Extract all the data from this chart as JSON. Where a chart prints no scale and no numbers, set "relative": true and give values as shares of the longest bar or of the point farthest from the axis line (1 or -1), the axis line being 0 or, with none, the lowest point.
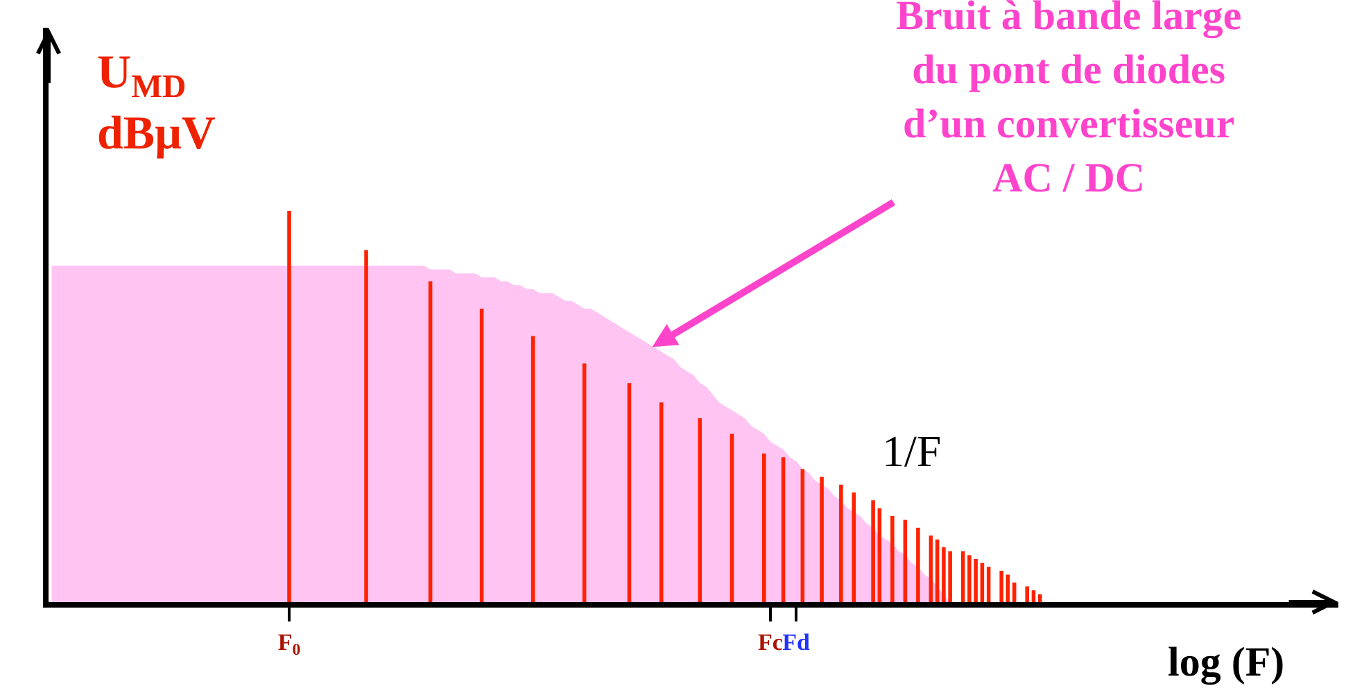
{
  "chart_data": {
    "type": "bar",
    "relative": true,
    "ylabel": "U$_{MD}$\ndBμV",
    "xlabel": "log (F)",
    "categories": [
      null,
      null,
      null,
      null,
      null,
      null,
      null,
      null,
      null,
      null,
      null,
      null,
      null,
      null,
      null,
      null,
      null,
      null,
      null,
      null,
      null,
      null,
      null,
      null,
      null,
      null,
      null,
      null,
      null,
      null,
      null,
      null,
      null,
      null,
      null,
      null,
      null,
      "F$_{0}$",
      null,
      null,
      null,
      null,
      null,
      null,
      null,
      null,
      null,
      null,
      null,
      null,
      null,
      null,
      null,
      null,
      null,
      null,
      null,
      null,
      null,
      null,
      null,
      null,
      null,
      null,
      null,
      null,
      null,
      null,
      null,
      null,
      null,
      null,
      null,
      null,
      null,
      null,
      null,
      null,
      null,
      null,
      null,
      null,
      null,
      null,
      null,
      null,
      null,
      null,
      null,
      null,
      null,
      null,
      null,
      null,
      null,
      null,
      null,
      null,
      null,
      null,
      null,
      null,
      null,
      null,
      null,
      null,
      null,
      null,
      null,
      null,
      null,
      null,
      "Fc",
      null,
      null,
      null,
      "Fd",
      null,
      null,
      null,
      null,
      null,
      null,
      null,
      null,
      null,
      null,
      null,
      null,
      null,
      null,
      null,
      null,
      null,
      null,
      null,
      null,
      null,
      null,
      null,
      null,
      null,
      null,
      null,
      null,
      null,
      null,
      null,
      null,
      null,
      null,
      null,
      null,
      null,
      null,
      null,
      null,
      null,
      null,
      null,
      null,
      null,
      null,
      null,
      null,
      null,
      null,
      null,
      null,
      null,
      null,
      null,
      null,
      null,
      null,
      null,
      null,
      null,
      null,
      null,
      null,
      null,
      null,
      null,
      null,
      null,
      null,
      null,
      null,
      null,
      null,
      null,
      null,
      null,
      null,
      null,
      null,
      null,
      null,
      null,
      null
    ],
    "series": [
      {
        "type": "area",
        "color": "#ffc4f2",
        "values": [
          0.86,
          0.86,
          0.86,
          0.86,
          0.86,
          0.86,
          0.86,
          0.86,
          0.86,
          0.86,
          0.86,
          0.86,
          0.86,
          0.86,
          0.86,
          0.86,
          0.86,
          0.86,
          0.86,
          0.86,
          0.86,
          0.86,
          0.86,
          0.86,
          0.86,
          0.86,
          0.86,
          0.86,
          0.86,
          0.86,
          0.86,
          0.86,
          0.86,
          0.86,
          0.86,
          0.86,
          0.86,
          0.86,
          0.86,
          0.86,
          0.86,
          0.86,
          0.86,
          0.86,
          0.86,
          0.86,
          0.86,
          0.86,
          0.86,
          0.86,
          0.86,
          0.86,
          0.86,
          0.86,
          0.86,
          0.86,
          0.86,
          0.86,
          0.86,
          0.85,
          0.85,
          0.85,
          0.85,
          0.84,
          0.84,
          0.84,
          0.84,
          0.83,
          0.83,
          0.83,
          0.82,
          0.82,
          0.81,
          0.81,
          0.8,
          0.8,
          0.79,
          0.79,
          0.79,
          0.78,
          0.77,
          0.77,
          0.76,
          0.75,
          0.75,
          0.74,
          0.73,
          0.72,
          0.71,
          0.7,
          0.69,
          0.68,
          0.67,
          0.66,
          0.65,
          0.64,
          0.63,
          0.62,
          0.6,
          0.59,
          0.58,
          0.56,
          0.55,
          0.53,
          0.51,
          0.5,
          0.49,
          0.48,
          0.47,
          0.45,
          0.44,
          0.43,
          0.41,
          0.4,
          0.39,
          0.37,
          0.36,
          0.34,
          0.33,
          0.31,
          0.3,
          0.29,
          0.27,
          0.26,
          0.24,
          0.23,
          0.22,
          0.2,
          0.19,
          0.17,
          0.16,
          0.15,
          0.13,
          0.12,
          0.1,
          0.09,
          0.07,
          0.06,
          0.04,
          0.02,
          0,
          null,
          null,
          null,
          null,
          null,
          null,
          null,
          null,
          null,
          null,
          null,
          null,
          null,
          null,
          null,
          null,
          null,
          null,
          null,
          null,
          null,
          null,
          null,
          null,
          null,
          null,
          null,
          null,
          null,
          null,
          null,
          null,
          null,
          null,
          null,
          null,
          null,
          null,
          null,
          null,
          null,
          null,
          null,
          null,
          null,
          null,
          null,
          null,
          null,
          null,
          null,
          null,
          null,
          null,
          null,
          null,
          null,
          null,
          null,
          null
        ]
      },
      {
        "color": "#ff2200",
        "values": [
          null,
          null,
          null,
          null,
          null,
          null,
          null,
          null,
          null,
          null,
          null,
          null,
          null,
          null,
          null,
          null,
          null,
          null,
          null,
          null,
          null,
          null,
          null,
          null,
          null,
          null,
          null,
          null,
          null,
          null,
          null,
          null,
          null,
          null,
          null,
          null,
          null,
          1,
          null,
          null,
          null,
          null,
          null,
          null,
          null,
          null,
          null,
          null,
          null,
          0.9,
          null,
          null,
          null,
          null,
          null,
          null,
          null,
          null,
          null,
          0.82,
          null,
          null,
          null,
          null,
          null,
          null,
          null,
          0.75,
          null,
          null,
          null,
          null,
          null,
          null,
          null,
          0.68,
          null,
          null,
          null,
          null,
          null,
          null,
          null,
          0.61,
          null,
          null,
          null,
          null,
          null,
          null,
          0.56,
          null,
          null,
          null,
          null,
          0.51,
          null,
          null,
          null,
          null,
          null,
          0.47,
          null,
          null,
          null,
          null,
          0.43,
          null,
          null,
          null,
          null,
          0.38,
          null,
          null,
          0.37,
          null,
          null,
          0.34,
          null,
          null,
          0.32,
          null,
          null,
          0.3,
          null,
          0.28,
          null,
          null,
          0.26,
          0.24,
          null,
          0.22,
          null,
          0.21,
          null,
          0.19,
          null,
          0.17,
          0.16,
          0.14,
          0.13,
          null,
          0.13,
          0.12,
          0.11,
          0.1,
          0.09,
          null,
          0.08,
          0.07,
          0.05,
          null,
          0.04,
          0.03,
          0.02,
          null,
          null,
          null,
          null,
          null,
          null,
          null,
          null,
          null,
          null,
          null,
          null,
          null,
          null,
          null,
          null,
          null,
          null,
          null,
          null,
          null,
          null,
          null,
          null,
          null,
          null,
          null,
          null,
          null,
          null,
          null,
          null,
          null,
          null,
          null,
          null,
          null,
          null,
          null,
          null,
          null,
          null,
          null,
          null,
          null,
          null
        ]
      }
    ],
    "annotations": [
      "Bruit à bande large\ndu pont de diodes\nd’un convertisseur\nAC / DC",
      "1/F"
    ],
    "grid": false
  }
}
